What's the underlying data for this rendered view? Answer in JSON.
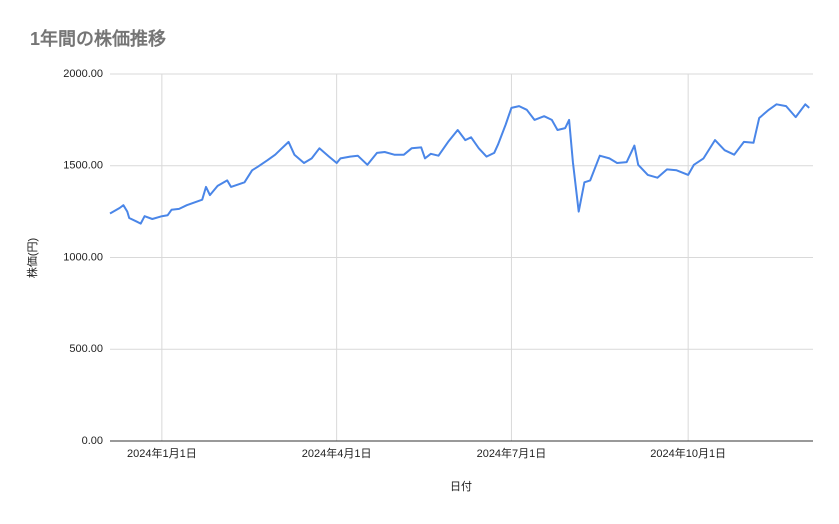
{
  "chart_data": {
    "type": "line",
    "title": "1年間の株価推移",
    "x_label": "日付",
    "y_label": "株価(円)",
    "xlim": [
      "2023-12-05",
      "2024-12-05"
    ],
    "xticks": [
      {
        "value": "2024-01-01",
        "label": "2024年1月1日"
      },
      {
        "value": "2024-04-01",
        "label": "2024年4月1日"
      },
      {
        "value": "2024-07-01",
        "label": "2024年7月1日"
      },
      {
        "value": "2024-10-01",
        "label": "2024年10月1日"
      }
    ],
    "ylim": [
      0,
      2000
    ],
    "yticks": [
      {
        "value": 0,
        "label": "0.00"
      },
      {
        "value": 500,
        "label": "500.00"
      },
      {
        "value": 1000,
        "label": "1000.00"
      },
      {
        "value": 1500,
        "label": "1500.00"
      },
      {
        "value": 2000,
        "label": "2000.00"
      }
    ],
    "grid": true,
    "x": [
      "2023-12-05",
      "2023-12-10",
      "2023-12-12",
      "2023-12-14",
      "2023-12-15",
      "2023-12-19",
      "2023-12-21",
      "2023-12-23",
      "2023-12-27",
      "2024-01-01",
      "2024-01-04",
      "2024-01-06",
      "2024-01-10",
      "2024-01-14",
      "2024-01-18",
      "2024-01-22",
      "2024-01-24",
      "2024-01-26",
      "2024-01-30",
      "2024-02-04",
      "2024-02-06",
      "2024-02-13",
      "2024-02-17",
      "2024-02-20",
      "2024-02-25",
      "2024-02-29",
      "2024-03-03",
      "2024-03-07",
      "2024-03-10",
      "2024-03-15",
      "2024-03-19",
      "2024-03-23",
      "2024-03-28",
      "2024-04-01",
      "2024-04-03",
      "2024-04-08",
      "2024-04-12",
      "2024-04-17",
      "2024-04-22",
      "2024-04-26",
      "2024-05-01",
      "2024-05-06",
      "2024-05-10",
      "2024-05-15",
      "2024-05-17",
      "2024-05-20",
      "2024-05-24",
      "2024-05-29",
      "2024-06-03",
      "2024-06-07",
      "2024-06-10",
      "2024-06-14",
      "2024-06-18",
      "2024-06-22",
      "2024-06-24",
      "2024-06-28",
      "2024-07-01",
      "2024-07-05",
      "2024-07-09",
      "2024-07-13",
      "2024-07-18",
      "2024-07-22",
      "2024-07-25",
      "2024-07-29",
      "2024-07-31",
      "2024-08-02",
      "2024-08-05",
      "2024-08-08",
      "2024-08-11",
      "2024-08-16",
      "2024-08-21",
      "2024-08-25",
      "2024-08-30",
      "2024-09-03",
      "2024-09-05",
      "2024-09-10",
      "2024-09-15",
      "2024-09-20",
      "2024-09-25",
      "2024-10-01",
      "2024-10-04",
      "2024-10-09",
      "2024-10-15",
      "2024-10-20",
      "2024-10-25",
      "2024-10-30",
      "2024-11-04",
      "2024-11-07",
      "2024-11-12",
      "2024-11-16",
      "2024-11-21",
      "2024-11-26",
      "2024-12-01",
      "2024-12-03"
    ],
    "series": [
      {
        "name": "株価",
        "color": "#4a86e8",
        "values": [
          1240,
          1270,
          1285,
          1250,
          1215,
          1195,
          1185,
          1225,
          1210,
          1225,
          1230,
          1260,
          1265,
          1285,
          1300,
          1315,
          1385,
          1340,
          1390,
          1420,
          1385,
          1410,
          1475,
          1495,
          1530,
          1560,
          1590,
          1630,
          1560,
          1515,
          1540,
          1595,
          1550,
          1515,
          1540,
          1550,
          1555,
          1505,
          1570,
          1575,
          1560,
          1560,
          1595,
          1600,
          1540,
          1565,
          1555,
          1630,
          1695,
          1640,
          1655,
          1595,
          1550,
          1570,
          1615,
          1725,
          1815,
          1825,
          1805,
          1750,
          1770,
          1750,
          1695,
          1705,
          1750,
          1520,
          1250,
          1410,
          1420,
          1555,
          1540,
          1515,
          1520,
          1610,
          1505,
          1450,
          1435,
          1480,
          1475,
          1450,
          1505,
          1540,
          1640,
          1585,
          1560,
          1630,
          1625,
          1760,
          1805,
          1835,
          1825,
          1765,
          1835,
          1815
        ]
      }
    ]
  }
}
